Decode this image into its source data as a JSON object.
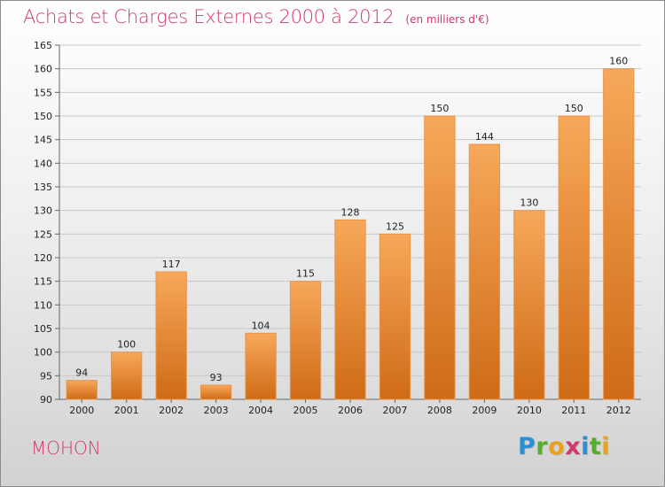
{
  "header": {
    "title": "Achats et Charges Externes 2000 à 2012",
    "subtitle": "(en milliers d'€)"
  },
  "footer": {
    "commune": "MOHON",
    "logo": {
      "letters": [
        "P",
        "r",
        "o",
        "x",
        "i",
        "t",
        "i"
      ],
      "colors": [
        "#2a8fd6",
        "#58ad2e",
        "#e8a21c",
        "#d2386b",
        "#2a8fd6",
        "#58ad2e",
        "#e8a21c"
      ]
    }
  },
  "colors": {
    "title": "#d2386b",
    "bar_top": "#f7a85a",
    "bar_bottom": "#cf6b16",
    "bar_edge": "#e8944a",
    "axis": "#666666",
    "tick_label": "#222222",
    "grid": "#c8c8c8"
  },
  "chart_data": {
    "type": "bar",
    "categories": [
      "2000",
      "2001",
      "2002",
      "2003",
      "2004",
      "2005",
      "2006",
      "2007",
      "2008",
      "2009",
      "2010",
      "2011",
      "2012"
    ],
    "values": [
      94,
      100,
      117,
      93,
      104,
      115,
      128,
      125,
      150,
      144,
      130,
      150,
      160
    ],
    "ylim": [
      90,
      165
    ],
    "yticks": [
      90,
      95,
      100,
      105,
      110,
      115,
      120,
      125,
      130,
      135,
      140,
      145,
      150,
      155,
      160,
      165
    ],
    "data_labels": true,
    "grid": true,
    "legend": "none"
  }
}
